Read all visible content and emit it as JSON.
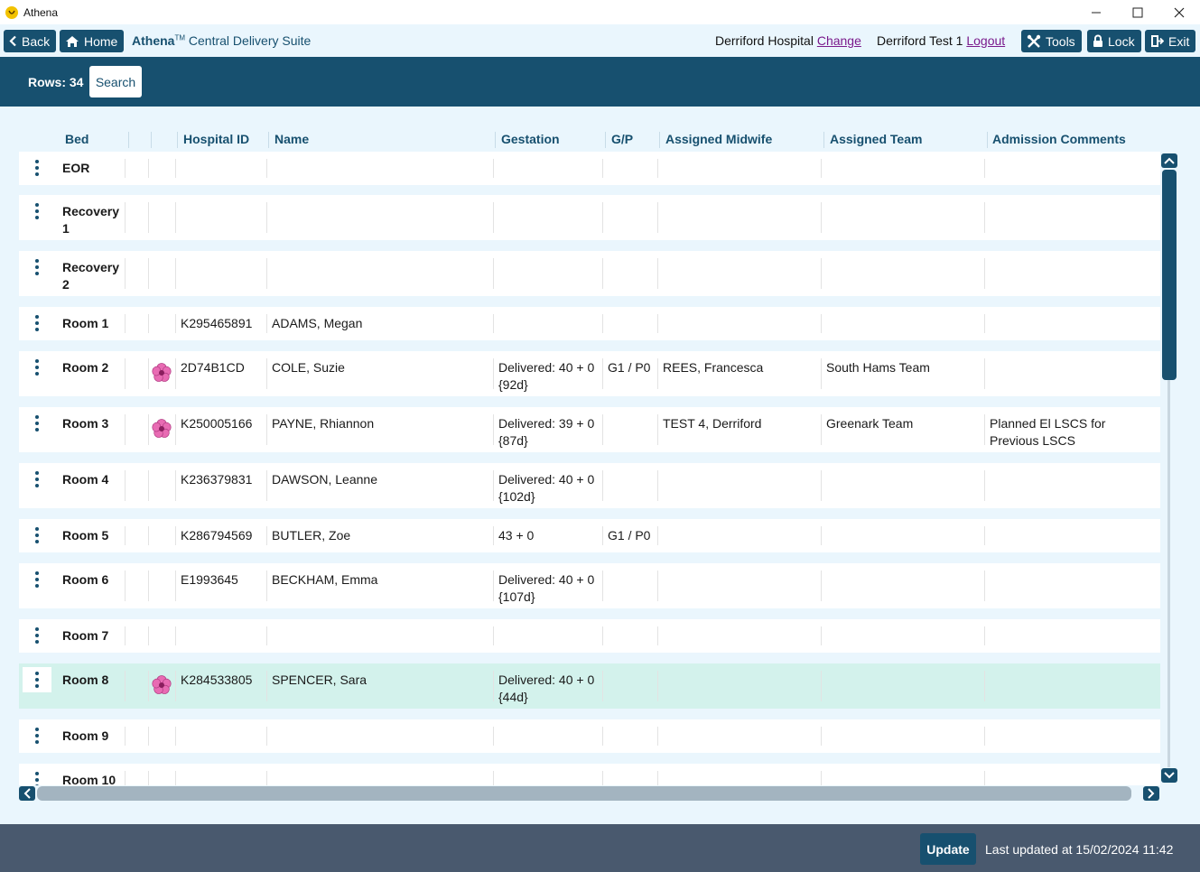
{
  "window": {
    "title": "Athena",
    "controls": {
      "minimize": "—",
      "maximize": "☐",
      "close": "✕"
    }
  },
  "toolbar": {
    "back_label": "Back",
    "home_label": "Home",
    "product": "Athena",
    "trademark": "TM",
    "suite": "Central Delivery Suite",
    "hospital": "Derriford Hospital",
    "change_label": "Change",
    "user": "Derriford Test 1",
    "logout_label": "Logout",
    "tools_label": "Tools",
    "lock_label": "Lock",
    "exit_label": "Exit"
  },
  "search": {
    "rows_label": "Rows: 34",
    "search_label": "Search"
  },
  "columns": {
    "bed": "Bed",
    "hospital_id": "Hospital ID",
    "name": "Name",
    "gestation": "Gestation",
    "gp": "G/P",
    "midwife": "Assigned Midwife",
    "team": "Assigned Team",
    "comments": "Admission Comments"
  },
  "rows": [
    {
      "bed": "EOR",
      "flower": false,
      "hospital_id": "",
      "name": "",
      "gestation": "",
      "gp": "",
      "midwife": "",
      "team": "",
      "comments": ""
    },
    {
      "bed": "Recovery 1",
      "flower": false,
      "hospital_id": "",
      "name": "",
      "gestation": "",
      "gp": "",
      "midwife": "",
      "team": "",
      "comments": ""
    },
    {
      "bed": "Recovery 2",
      "flower": false,
      "hospital_id": "",
      "name": "",
      "gestation": "",
      "gp": "",
      "midwife": "",
      "team": "",
      "comments": ""
    },
    {
      "bed": "Room 1",
      "flower": false,
      "hospital_id": "K295465891",
      "name": "ADAMS, Megan",
      "gestation": "",
      "gp": "",
      "midwife": "",
      "team": "",
      "comments": ""
    },
    {
      "bed": "Room 2",
      "flower": true,
      "hospital_id": "2D74B1CD",
      "name": "COLE, Suzie",
      "gestation": "Delivered: 40 + 0 {92d}",
      "gp": "G1 / P0",
      "midwife": "REES, Francesca",
      "team": "South Hams Team",
      "comments": ""
    },
    {
      "bed": "Room 3",
      "flower": true,
      "hospital_id": "K250005166",
      "name": "PAYNE, Rhiannon",
      "gestation": "Delivered: 39 + 0 {87d}",
      "gp": "",
      "midwife": "TEST 4, Derriford",
      "team": "Greenark Team",
      "comments": "Planned El LSCS for Previous LSCS"
    },
    {
      "bed": "Room 4",
      "flower": false,
      "hospital_id": "K236379831",
      "name": "DAWSON, Leanne",
      "gestation": "Delivered: 40 + 0 {102d}",
      "gp": "",
      "midwife": "",
      "team": "",
      "comments": ""
    },
    {
      "bed": "Room 5",
      "flower": false,
      "hospital_id": "K286794569",
      "name": "BUTLER, Zoe",
      "gestation": "43 + 0",
      "gp": "G1 / P0",
      "midwife": "",
      "team": "",
      "comments": ""
    },
    {
      "bed": "Room 6",
      "flower": false,
      "hospital_id": "E1993645",
      "name": "BECKHAM, Emma",
      "gestation": "Delivered: 40 + 0 {107d}",
      "gp": "",
      "midwife": "",
      "team": "",
      "comments": ""
    },
    {
      "bed": "Room 7",
      "flower": false,
      "hospital_id": "",
      "name": "",
      "gestation": "",
      "gp": "",
      "midwife": "",
      "team": "",
      "comments": ""
    },
    {
      "bed": "Room 8",
      "flower": true,
      "selected": true,
      "hospital_id": "K284533805",
      "name": "SPENCER, Sara",
      "gestation": "Delivered: 40 + 0 {44d}",
      "gp": "",
      "midwife": "",
      "team": "",
      "comments": ""
    },
    {
      "bed": "Room 9",
      "flower": false,
      "hospital_id": "",
      "name": "",
      "gestation": "",
      "gp": "",
      "midwife": "",
      "team": "",
      "comments": ""
    },
    {
      "bed": "Room 10",
      "flower": false,
      "hospital_id": "",
      "name": "",
      "gestation": "",
      "gp": "",
      "midwife": "",
      "team": "",
      "comments": ""
    }
  ],
  "footer": {
    "update_label": "Update",
    "last_updated": "Last updated at 15/02/2024 11:42"
  },
  "colors": {
    "brand": "#17506f",
    "selected_row": "#d3f2ec",
    "footer": "#49596e",
    "link": "#7a1a8c",
    "flower": "#e86bb3"
  }
}
